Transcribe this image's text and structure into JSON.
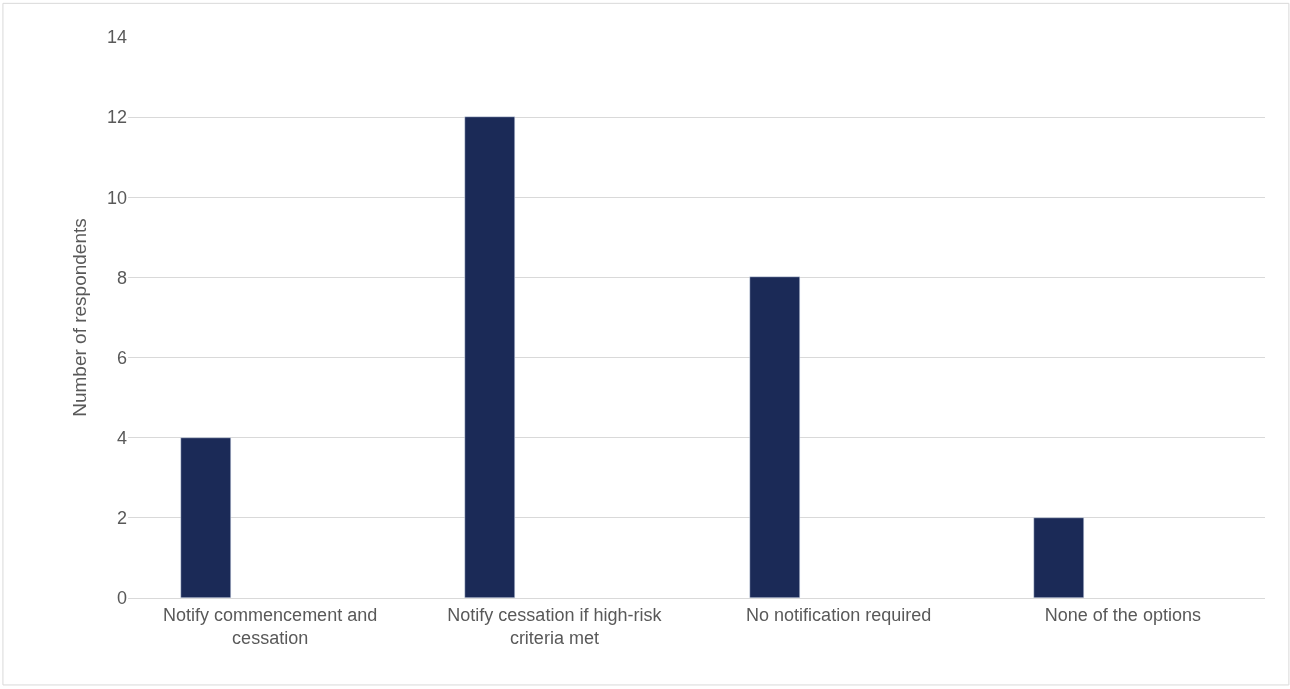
{
  "chart_data": {
    "type": "bar",
    "ylabel": "Number of respondents",
    "categories": [
      "Notify commencement and cessation",
      "Notify cessation if high-risk criteria met",
      "No notification required",
      "None of the options"
    ],
    "values": [
      4,
      12,
      8,
      2
    ],
    "color": "#1b2a57",
    "ylim": [
      0,
      14
    ],
    "yticks": [
      0,
      2,
      4,
      6,
      8,
      10,
      12,
      14
    ],
    "grid": "y"
  }
}
